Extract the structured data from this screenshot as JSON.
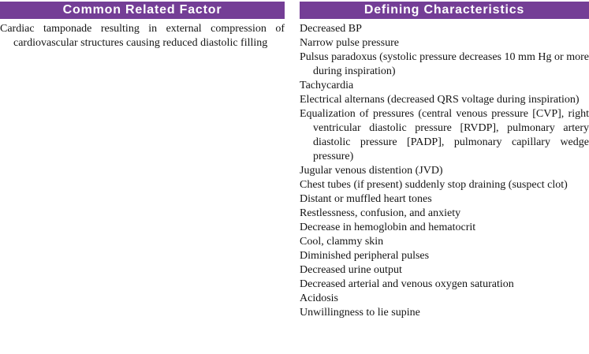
{
  "page": {
    "left_column": {
      "header": "Common Related Factor",
      "items": [
        "Cardiac tamponade resulting in external compression of cardiovascular structures causing reduced diastolic filling"
      ]
    },
    "right_column": {
      "header": "Defining Characteristics",
      "items": [
        "Decreased BP",
        "Narrow pulse pressure",
        "Pulsus paradoxus (systolic pressure decreases 10 mm Hg or more during inspiration)",
        "Tachycardia",
        "Electrical alternans (decreased QRS voltage during inspiration)",
        "Equalization of pressures (central venous pressure [CVP], right ventricular diastolic pressure [RVDP], pulmonary artery diastolic pressure [PADP], pulmonary capillary wedge pressure)",
        "Jugular venous distention (JVD)",
        "Chest tubes (if present) suddenly stop draining (suspect clot)",
        "Distant or muffled heart tones",
        "Restlessness, confusion, and anxiety",
        "Decrease in hemoglobin and hematocrit",
        "Cool, clammy skin",
        "Diminished peripheral pulses",
        "Decreased urine output",
        "Decreased arterial and venous oxygen saturation",
        "Acidosis",
        "Unwillingness to lie supine"
      ]
    },
    "colors": {
      "header_background": "#743E96",
      "header_text": "#FFFFFF",
      "body_text": "#141414"
    }
  }
}
